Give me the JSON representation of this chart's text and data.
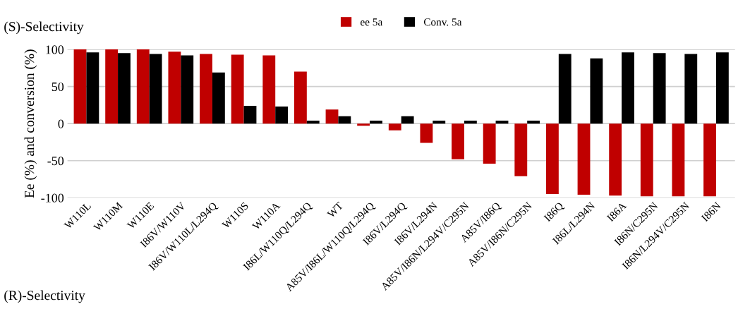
{
  "chart_data": {
    "type": "bar",
    "ylabel": "Ee (%) and conversion (%)",
    "categories": [
      "W110L",
      "W110M",
      "W110E",
      "I86V/W110V",
      "I86V/W110L/L294Q",
      "W110S",
      "W110A",
      "I86L/W110Q/L294Q",
      "WT",
      "A85V/I86L/W110Q/L294Q",
      "I86V/L294Q",
      "I86V/L294N",
      "A85V/I86N/L294V/C295N",
      "A85V/I86Q",
      "A85V/I86N/C295N",
      "I86Q",
      "I86L/L294N",
      "I86A",
      "I86N/C295N",
      "I86N/L294V/C295N",
      "I86N"
    ],
    "series": [
      {
        "name": "ee 5a",
        "color": "#c00000",
        "values": [
          100,
          100,
          100,
          97,
          94,
          93,
          92,
          70,
          19,
          -3,
          -9,
          -26,
          -48,
          -54,
          -71,
          -95,
          -96,
          -97,
          -98,
          -98,
          -98
        ]
      },
      {
        "name": "Conv. 5a",
        "color": "#000000",
        "values": [
          96,
          95,
          94,
          92,
          69,
          24,
          23,
          4,
          10,
          4,
          10,
          4,
          4,
          4,
          4,
          94,
          88,
          96,
          95,
          94,
          96
        ]
      }
    ],
    "ylim": [
      -100,
      100
    ],
    "yticks": [
      -100,
      -50,
      0,
      50,
      100
    ],
    "grid": "y",
    "legend": "top",
    "annotations": [
      "(S)-Selectivity",
      "(R)-Selectivity"
    ]
  }
}
